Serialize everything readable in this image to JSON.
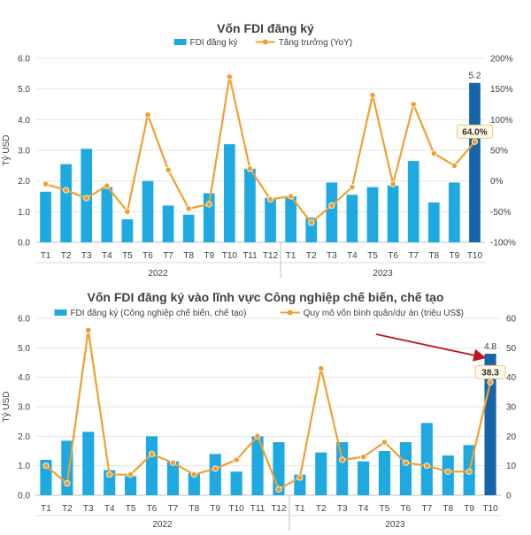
{
  "chart_data": [
    {
      "type": "bar",
      "title": "Vốn FDI đăng ký",
      "ylabel": "Tỷ USD",
      "ylim": [
        0,
        6
      ],
      "y_ticks": [
        "0.0",
        "1.0",
        "2.0",
        "3.0",
        "4.0",
        "5.0",
        "6.0"
      ],
      "y2lim": [
        -100,
        200
      ],
      "y2_ticks": [
        "-100%",
        "-50%",
        "0%",
        "50%",
        "100%",
        "150%",
        "200%"
      ],
      "categories": [
        "T1",
        "T2",
        "T3",
        "T4",
        "T5",
        "T6",
        "T7",
        "T8",
        "T9",
        "T10",
        "T11",
        "T12",
        "T1",
        "T2",
        "T3",
        "T4",
        "T5",
        "T6",
        "T7",
        "T8",
        "T9",
        "T10"
      ],
      "year_groups": [
        {
          "label": "2022",
          "start": 0,
          "end": 11
        },
        {
          "label": "2023",
          "start": 12,
          "end": 21
        }
      ],
      "legend": "top-center",
      "series": [
        {
          "name": "FDI đăng ký",
          "type": "bar",
          "axis": "left",
          "color": "#1fa9e1",
          "highlight_color": "#1565a8",
          "values": [
            1.65,
            2.55,
            3.05,
            1.8,
            0.75,
            2.0,
            1.2,
            0.9,
            1.6,
            3.2,
            2.4,
            1.45,
            1.5,
            0.8,
            1.95,
            1.55,
            1.8,
            1.85,
            2.65,
            1.3,
            1.95,
            5.2
          ]
        },
        {
          "name": "Tăng trưởng (YoY)",
          "type": "line",
          "axis": "right",
          "color": "#f0a030",
          "values": [
            -5,
            -15,
            -28,
            -8,
            -50,
            108,
            18,
            -45,
            -38,
            170,
            20,
            -30,
            -25,
            -68,
            -40,
            -10,
            140,
            -5,
            125,
            45,
            25,
            64
          ]
        }
      ],
      "data_labels": [
        {
          "series": 0,
          "index": 21,
          "text": "5.2"
        },
        {
          "series": 1,
          "index": 21,
          "text": "64.0%"
        }
      ]
    },
    {
      "type": "bar",
      "title": "Vốn FDI đăng ký vào lĩnh vực Công nghiệp chế biến, chế tạo",
      "ylabel": "Tỷ USD",
      "ylim": [
        0,
        6
      ],
      "y_ticks": [
        "0.0",
        "1.0",
        "2.0",
        "3.0",
        "4.0",
        "5.0",
        "6.0"
      ],
      "y2lim": [
        0,
        60
      ],
      "y2_ticks": [
        "0",
        "10",
        "20",
        "30",
        "40",
        "50",
        "60"
      ],
      "categories": [
        "T1",
        "T2",
        "T3",
        "T4",
        "T5",
        "T6",
        "T7",
        "T8",
        "T9",
        "T10",
        "T11",
        "T12",
        "T1",
        "T2",
        "T3",
        "T4",
        "T5",
        "T6",
        "T7",
        "T8",
        "T9",
        "T10"
      ],
      "year_groups": [
        {
          "label": "2022",
          "start": 0,
          "end": 11
        },
        {
          "label": "2023",
          "start": 12,
          "end": 21
        }
      ],
      "legend": "top-center",
      "series": [
        {
          "name": "FDI đăng ký (Công nghiệp chế biến, chế tạo)",
          "type": "bar",
          "axis": "left",
          "color": "#1fa9e1",
          "highlight_color": "#1565a8",
          "values": [
            1.2,
            1.85,
            2.15,
            0.85,
            0.65,
            2.0,
            1.15,
            0.75,
            1.4,
            0.8,
            2.0,
            1.8,
            0.7,
            1.45,
            1.8,
            1.15,
            1.5,
            1.8,
            2.45,
            1.35,
            1.7,
            4.8
          ]
        },
        {
          "name": "Quy mô vốn bình quân/dự án (triệu US$)",
          "type": "line",
          "axis": "right",
          "color": "#f0a030",
          "values": [
            10,
            4,
            56,
            7,
            7,
            14,
            11,
            7,
            9,
            12,
            20,
            2,
            6,
            43,
            12,
            13,
            18,
            11,
            10,
            8,
            8,
            38.3
          ]
        }
      ],
      "data_labels": [
        {
          "series": 0,
          "index": 21,
          "text": "4.8"
        },
        {
          "series": 1,
          "index": 21,
          "text": "38.3"
        }
      ]
    }
  ]
}
